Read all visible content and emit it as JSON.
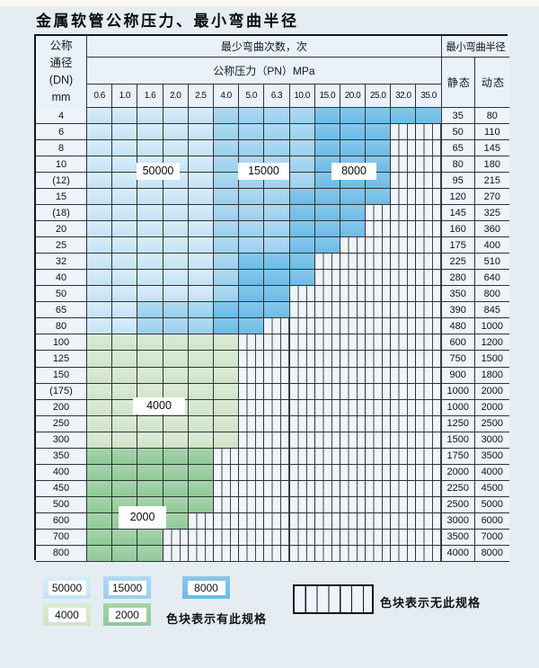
{
  "page": {
    "title": "金属软管公称压力、最小弯曲半径"
  },
  "table": {
    "corner": {
      "line1": "公称",
      "line2": "通径",
      "line3": "(DN)",
      "line4": "mm"
    },
    "bend_header": "最少弯曲次数，次",
    "pressure_header": "公称压力（PN）MPa",
    "radius_header": "最小弯曲半径",
    "static_header": "静 态",
    "dynamic_header": "动 态",
    "pressure_columns": [
      "0.6",
      "1.0",
      "1.6",
      "2.0",
      "2.5",
      "4.0",
      "5.0",
      "6.3",
      "10.0",
      "15.0",
      "20.0",
      "25.0",
      "32.0",
      "35.0"
    ],
    "zone_cycles": {
      "z50": "50000",
      "z15": "15000",
      "z8": "8000",
      "z4": "4000",
      "z2": "2000"
    },
    "rows": [
      {
        "dn": "4",
        "static": "35",
        "dynamic": "80",
        "zones": [
          [
            "z50",
            5
          ],
          [
            "z15",
            4
          ],
          [
            "z8",
            5
          ]
        ]
      },
      {
        "dn": "6",
        "static": "50",
        "dynamic": "110",
        "zones": [
          [
            "z50",
            5
          ],
          [
            "z15",
            4
          ],
          [
            "z8",
            3
          ]
        ]
      },
      {
        "dn": "8",
        "static": "65",
        "dynamic": "145",
        "zones": [
          [
            "z50",
            5
          ],
          [
            "z15",
            4
          ],
          [
            "z8",
            3
          ]
        ]
      },
      {
        "dn": "10",
        "static": "80",
        "dynamic": "180",
        "zones": [
          [
            "z50",
            5
          ],
          [
            "z15",
            4
          ],
          [
            "z8",
            3
          ]
        ]
      },
      {
        "dn": "(12)",
        "static": "95",
        "dynamic": "215",
        "zones": [
          [
            "z50",
            5
          ],
          [
            "z15",
            4
          ],
          [
            "z8",
            3
          ]
        ]
      },
      {
        "dn": "15",
        "static": "120",
        "dynamic": "270",
        "zones": [
          [
            "z50",
            5
          ],
          [
            "z15",
            3
          ],
          [
            "z8",
            4
          ]
        ]
      },
      {
        "dn": "(18)",
        "static": "145",
        "dynamic": "325",
        "zones": [
          [
            "z50",
            5
          ],
          [
            "z15",
            3
          ],
          [
            "z8",
            3
          ]
        ]
      },
      {
        "dn": "20",
        "static": "160",
        "dynamic": "360",
        "zones": [
          [
            "z50",
            5
          ],
          [
            "z15",
            3
          ],
          [
            "z8",
            3
          ]
        ]
      },
      {
        "dn": "25",
        "static": "175",
        "dynamic": "400",
        "zones": [
          [
            "z50",
            5
          ],
          [
            "z15",
            3
          ],
          [
            "z8",
            2
          ]
        ]
      },
      {
        "dn": "32",
        "static": "225",
        "dynamic": "510",
        "zones": [
          [
            "z50",
            5
          ],
          [
            "z15",
            1
          ],
          [
            "z8",
            3
          ]
        ]
      },
      {
        "dn": "40",
        "static": "280",
        "dynamic": "640",
        "zones": [
          [
            "z50",
            5
          ],
          [
            "z15",
            1
          ],
          [
            "z8",
            3
          ]
        ]
      },
      {
        "dn": "50",
        "static": "350",
        "dynamic": "800",
        "zones": [
          [
            "z50",
            5
          ],
          [
            "z15",
            1
          ],
          [
            "z8",
            2
          ]
        ]
      },
      {
        "dn": "65",
        "static": "390",
        "dynamic": "845",
        "zones": [
          [
            "z50",
            2
          ],
          [
            "z15",
            3
          ],
          [
            "z8",
            3
          ]
        ]
      },
      {
        "dn": "80",
        "static": "480",
        "dynamic": "1000",
        "zones": [
          [
            "z50",
            2
          ],
          [
            "z15",
            3
          ],
          [
            "z8",
            2
          ]
        ]
      },
      {
        "dn": "100",
        "static": "600",
        "dynamic": "1200",
        "zones": [
          [
            "z4",
            6
          ]
        ]
      },
      {
        "dn": "125",
        "static": "750",
        "dynamic": "1500",
        "zones": [
          [
            "z4",
            6
          ]
        ]
      },
      {
        "dn": "150",
        "static": "900",
        "dynamic": "1800",
        "zones": [
          [
            "z4",
            6
          ]
        ]
      },
      {
        "dn": "(175)",
        "static": "1000",
        "dynamic": "2000",
        "zones": [
          [
            "z4",
            6
          ]
        ]
      },
      {
        "dn": "200",
        "static": "1000",
        "dynamic": "2000",
        "zones": [
          [
            "z4",
            6
          ]
        ]
      },
      {
        "dn": "250",
        "static": "1250",
        "dynamic": "2500",
        "zones": [
          [
            "z4",
            6
          ]
        ]
      },
      {
        "dn": "300",
        "static": "1500",
        "dynamic": "3000",
        "zones": [
          [
            "z4",
            6
          ]
        ]
      },
      {
        "dn": "350",
        "static": "1750",
        "dynamic": "3500",
        "zones": [
          [
            "z2",
            5
          ]
        ]
      },
      {
        "dn": "400",
        "static": "2000",
        "dynamic": "4000",
        "zones": [
          [
            "z2",
            5
          ]
        ]
      },
      {
        "dn": "450",
        "static": "2250",
        "dynamic": "4500",
        "zones": [
          [
            "z2",
            5
          ]
        ]
      },
      {
        "dn": "500",
        "static": "2500",
        "dynamic": "5000",
        "zones": [
          [
            "z2",
            5
          ]
        ]
      },
      {
        "dn": "600",
        "static": "3000",
        "dynamic": "6000",
        "zones": [
          [
            "z2",
            4
          ]
        ]
      },
      {
        "dn": "700",
        "static": "3500",
        "dynamic": "7000",
        "zones": [
          [
            "z2",
            3
          ]
        ]
      },
      {
        "dn": "800",
        "static": "4000",
        "dynamic": "8000",
        "zones": [
          [
            "z2",
            3
          ]
        ]
      }
    ]
  },
  "zone_labels": [
    "50000",
    "15000",
    "8000",
    "4000",
    "2000"
  ],
  "legend": {
    "blocks": [
      {
        "label": "50000",
        "zone": "z50"
      },
      {
        "label": "15000",
        "zone": "z15"
      },
      {
        "label": "8000",
        "zone": "z8"
      },
      {
        "label": "4000",
        "zone": "z4"
      },
      {
        "label": "2000",
        "zone": "z2"
      }
    ],
    "has_spec_text": "色块表示有此规格",
    "no_spec_text": "色块表示无此规格"
  },
  "colors": {
    "cycles_50000": "#c4e3f5",
    "cycles_15000": "#9bd0ee",
    "cycles_8000": "#6cbbe5",
    "cycles_4000": "#cfe4c9",
    "cycles_2000": "#90c998",
    "page_background": "#e5edf2",
    "grid_line": "#2e3338"
  }
}
